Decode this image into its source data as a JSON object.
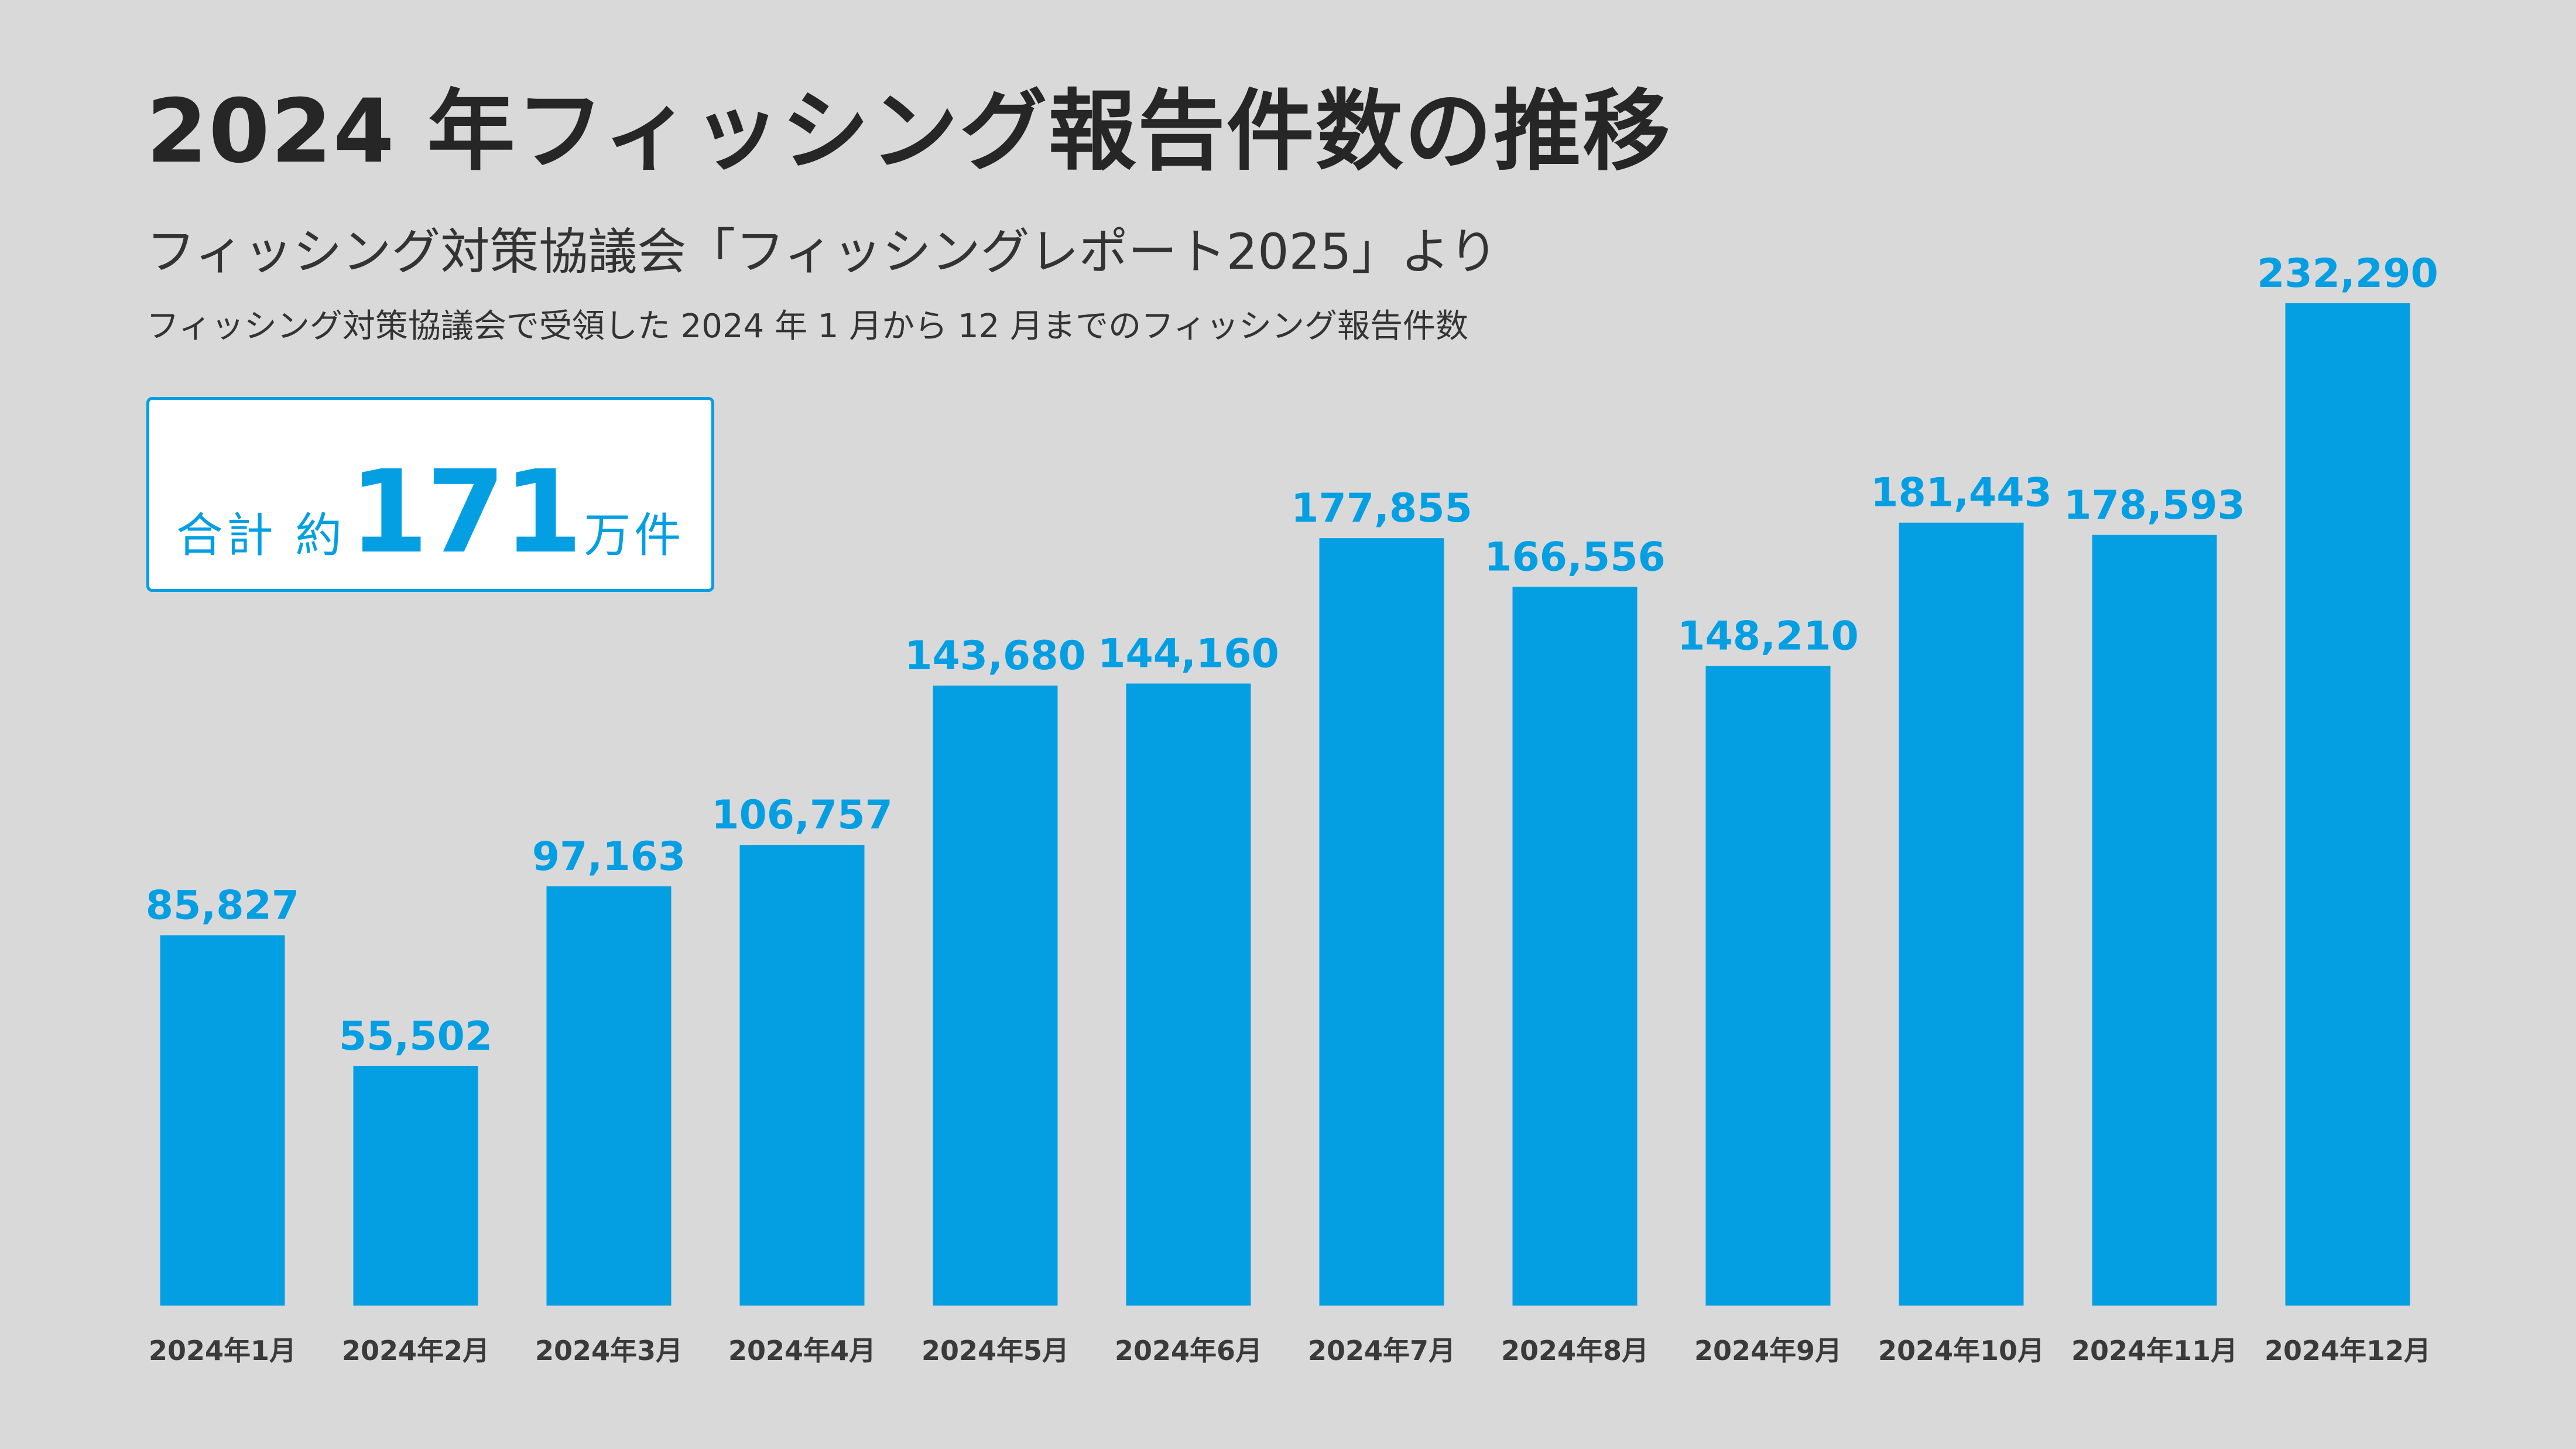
{
  "header": {
    "title": "2024 年フィッシング報告件数の推移",
    "subtitle": "フィッシング対策協議会「フィッシングレポート2025」より",
    "description": "フィッシング対策協議会で受領した 2024 年 1 月から 12 月までのフィッシング報告件数"
  },
  "summary": {
    "prefix": "合計 約",
    "value": "171",
    "unit": "万件"
  },
  "colors": {
    "accent": "#049fe3",
    "background": "#d9d9d9"
  },
  "chart_data": {
    "type": "bar",
    "categories": [
      "2024年1月",
      "2024年2月",
      "2024年3月",
      "2024年4月",
      "2024年5月",
      "2024年6月",
      "2024年7月",
      "2024年8月",
      "2024年9月",
      "2024年10月",
      "2024年11月",
      "2024年12月"
    ],
    "values": [
      85827,
      55502,
      97163,
      106757,
      143680,
      144160,
      177855,
      166556,
      148210,
      181443,
      178593,
      232290
    ],
    "value_labels": [
      "85,827",
      "55,502",
      "97,163",
      "106,757",
      "143,680",
      "144,160",
      "177,855",
      "166,556",
      "148,210",
      "181,443",
      "178,593",
      "232,290"
    ],
    "title": "2024 年フィッシング報告件数の推移",
    "xlabel": "",
    "ylabel": "",
    "ylim": [
      0,
      232290
    ],
    "grid": false,
    "legend": "none"
  }
}
